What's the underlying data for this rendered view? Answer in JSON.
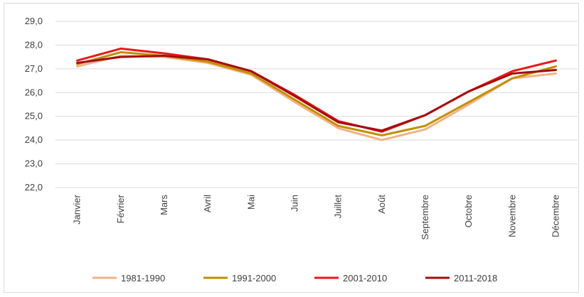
{
  "chart_data": {
    "type": "line",
    "title": "",
    "xlabel": "",
    "ylabel": "",
    "ylim": [
      22.0,
      29.0
    ],
    "yticks": [
      "22,0",
      "23,0",
      "24,0",
      "25,0",
      "26,0",
      "27,0",
      "28,0",
      "29,0"
    ],
    "ytick_values": [
      22,
      23,
      24,
      25,
      26,
      27,
      28,
      29
    ],
    "categories": [
      "Janvier",
      "Février",
      "Mars",
      "Avril",
      "Mai",
      "Juin",
      "Juillet",
      "Août",
      "Septembre",
      "Octobre",
      "Novembre",
      "Décembre"
    ],
    "grid": true,
    "legend_position": "bottom",
    "series": [
      {
        "name": "1981-1990",
        "color": "#f4b183",
        "values": [
          27.1,
          27.55,
          27.5,
          27.25,
          26.75,
          25.6,
          24.5,
          24.0,
          24.45,
          25.5,
          26.6,
          26.8
        ]
      },
      {
        "name": "1991-2000",
        "color": "#bf9000",
        "values": [
          27.2,
          27.7,
          27.55,
          27.3,
          26.8,
          25.7,
          24.6,
          24.2,
          24.6,
          25.6,
          26.6,
          27.1
        ]
      },
      {
        "name": "2001-2010",
        "color": "#e8191b",
        "values": [
          27.35,
          27.85,
          27.65,
          27.4,
          26.9,
          25.9,
          24.8,
          24.35,
          25.05,
          26.05,
          26.9,
          27.35
        ]
      },
      {
        "name": "2011-2018",
        "color": "#a50d0d",
        "values": [
          27.25,
          27.5,
          27.55,
          27.4,
          26.9,
          25.85,
          24.75,
          24.4,
          25.05,
          26.05,
          26.8,
          26.95
        ]
      }
    ]
  }
}
